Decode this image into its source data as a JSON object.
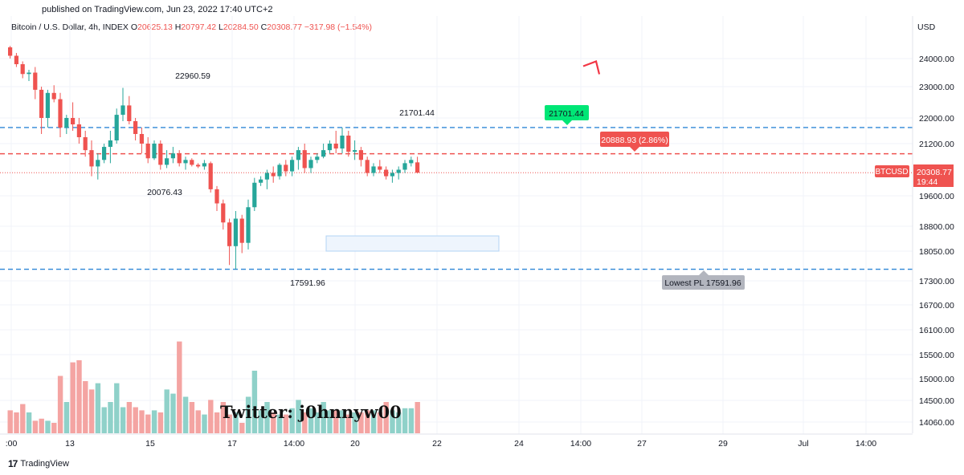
{
  "header": {
    "published": "published on TradingView.com, Jun 23, 2022 17:40 UTC+2"
  },
  "legend": {
    "symbol": "Bitcoin / U.S. Dollar, 4h, INDEX",
    "o_label": "O",
    "o": "20625.13",
    "h_label": "H",
    "h": "20797.42",
    "l_label": "L",
    "l": "20284.50",
    "c_label": "C",
    "c": "20308.77",
    "change": "−317.98 (−1.54%)"
  },
  "footer": {
    "brand": "TradingView",
    "logo": "tv-logo-icon"
  },
  "colors": {
    "up": "#26a69a",
    "down": "#ef5350",
    "vol_up": "#8fd1c9",
    "vol_down": "#f4a4a2",
    "blue_dash": "#2f86d6",
    "red_dash": "#ef5350",
    "green_label": "#00e676",
    "price_label": "#ef5350",
    "grey_label": "#b2b5be"
  },
  "chart_data": {
    "type": "candlestick",
    "currency_label": "USD",
    "y_ticks": [
      24000,
      23000,
      22000,
      21200,
      19600,
      18800,
      18050,
      17300,
      16700,
      16100,
      15500,
      15000,
      14500,
      14060
    ],
    "y_tick_labels": [
      "24000.00",
      "23000.00",
      "22000.00",
      "21200.00",
      "19600.00",
      "18800.00",
      "18050.00",
      "17300.00",
      "16700.00",
      "16100.00",
      "15500.00",
      "15000.00",
      "14500.00",
      "14060.00"
    ],
    "x_ticks": [
      ":00",
      "13",
      "15",
      "17",
      "14:00",
      "20",
      "22",
      "24",
      "14:00",
      "27",
      "29",
      "Jul",
      "14:00"
    ],
    "candles": [
      [
        24400,
        24450,
        24000,
        24100
      ],
      [
        24100,
        24200,
        23700,
        23800
      ],
      [
        23800,
        23900,
        23300,
        23450
      ],
      [
        23450,
        23600,
        23200,
        23500
      ],
      [
        23500,
        23700,
        22600,
        22900
      ],
      [
        22900,
        23000,
        21500,
        22000
      ],
      [
        22000,
        22900,
        21700,
        22800
      ],
      [
        22800,
        23050,
        22500,
        22600
      ],
      [
        22600,
        22800,
        21400,
        21700
      ],
      [
        21700,
        22100,
        21500,
        22000
      ],
      [
        22000,
        22500,
        21600,
        21800
      ],
      [
        21800,
        22000,
        21200,
        21400
      ],
      [
        21400,
        21600,
        20800,
        21000
      ],
      [
        21000,
        21300,
        20200,
        20500
      ],
      [
        20500,
        20900,
        20100,
        20700
      ],
      [
        20700,
        21200,
        20600,
        21100
      ],
      [
        21100,
        21600,
        20600,
        21300
      ],
      [
        21300,
        22300,
        21200,
        22100
      ],
      [
        22100,
        22960,
        21900,
        22400
      ],
      [
        22400,
        22700,
        21800,
        21900
      ],
      [
        21900,
        22000,
        21300,
        21500
      ],
      [
        21500,
        21700,
        20900,
        21200
      ],
      [
        21200,
        21400,
        20600,
        20750
      ],
      [
        20750,
        21300,
        20700,
        21200
      ],
      [
        21200,
        21300,
        20400,
        20550
      ],
      [
        20550,
        21000,
        20450,
        20750
      ],
      [
        20750,
        21100,
        20600,
        20900
      ],
      [
        20900,
        21000,
        20500,
        20600
      ],
      [
        20600,
        20800,
        20400,
        20700
      ],
      [
        20700,
        20750,
        20500,
        20550
      ],
      [
        20550,
        20600,
        20450,
        20500
      ],
      [
        20500,
        20700,
        20400,
        20600
      ],
      [
        20600,
        20650,
        19700,
        19800
      ],
      [
        19800,
        19900,
        19200,
        19400
      ],
      [
        19400,
        19500,
        18700,
        18900
      ],
      [
        18900,
        19000,
        17700,
        18200
      ],
      [
        18200,
        19200,
        17591.96,
        19000
      ],
      [
        19000,
        19100,
        18000,
        18300
      ],
      [
        18300,
        19500,
        18100,
        19300
      ],
      [
        19300,
        20150,
        19200,
        20000
      ],
      [
        20000,
        20200,
        19900,
        20100
      ],
      [
        20100,
        20400,
        19800,
        20300
      ],
      [
        20300,
        20500,
        20000,
        20200
      ],
      [
        20200,
        20600,
        20100,
        20550
      ],
      [
        20550,
        20700,
        20200,
        20350
      ],
      [
        20350,
        20800,
        20200,
        20700
      ],
      [
        20700,
        21100,
        20400,
        21000
      ],
      [
        21000,
        21200,
        20300,
        20450
      ],
      [
        20450,
        20800,
        20300,
        20700
      ],
      [
        20700,
        20900,
        20600,
        20800
      ],
      [
        20800,
        21200,
        20750,
        21000
      ],
      [
        21000,
        21300,
        20900,
        21200
      ],
      [
        21200,
        21600,
        20900,
        21050
      ],
      [
        21050,
        21701.44,
        20900,
        21450
      ],
      [
        21450,
        21600,
        20800,
        20950
      ],
      [
        20950,
        21300,
        20700,
        21000
      ],
      [
        21000,
        21100,
        20500,
        20700
      ],
      [
        20700,
        20800,
        20200,
        20300
      ],
      [
        20300,
        20600,
        20200,
        20500
      ],
      [
        20500,
        20700,
        20300,
        20400
      ],
      [
        20400,
        20500,
        20100,
        20200
      ],
      [
        20200,
        20400,
        20000,
        20300
      ],
      [
        20300,
        20500,
        20100,
        20400
      ],
      [
        20400,
        20700,
        20300,
        20600
      ],
      [
        20600,
        20800,
        20500,
        20700
      ],
      [
        20625.13,
        20797.42,
        20284.5,
        20308.77
      ]
    ],
    "volume": [
      0.22,
      0.2,
      0.28,
      0.2,
      0.12,
      0.14,
      0.12,
      0.1,
      0.55,
      0.3,
      0.68,
      0.7,
      0.5,
      0.42,
      0.48,
      0.25,
      0.3,
      0.48,
      0.25,
      0.3,
      0.25,
      0.22,
      0.18,
      0.22,
      0.2,
      0.42,
      0.38,
      0.88,
      0.35,
      0.3,
      0.22,
      0.18,
      0.32,
      0.2,
      0.3,
      0.18,
      0.2,
      0.1,
      0.35,
      0.6,
      0.22,
      0.3,
      0.2,
      0.18,
      0.18,
      0.24,
      0.32,
      0.2,
      0.24,
      0.2,
      0.3,
      0.22,
      0.22,
      0.22,
      0.18,
      0.2,
      0.2,
      0.22,
      0.22,
      0.2,
      0.3,
      0.22,
      0.2,
      0.24,
      0.24,
      0.3
    ],
    "highs_lows": [
      {
        "label": "22960.59"
      },
      {
        "label": "20076.43"
      },
      {
        "label": "17591.96"
      },
      {
        "label": "21701.44"
      }
    ],
    "levels": [
      {
        "name": "upper-resistance",
        "price": 21701.44,
        "style": "blue-dashed"
      },
      {
        "name": "middle-level",
        "price": 20888.93,
        "style": "red-dashed"
      },
      {
        "name": "lowest-support",
        "price": 17591.96,
        "style": "blue-dashed"
      }
    ],
    "labels": {
      "green": "21701.44",
      "red": "20888.93 (2.86%)",
      "lowest": "Lowest PL  17591.96",
      "symbol_tag": "BTCUSD",
      "price_tag": "20308.77",
      "countdown": "19:44"
    },
    "projection": [
      {
        "price": 20800
      },
      {
        "price": 18050
      },
      {
        "price": 23900
      }
    ],
    "watermark": "Twitter: j0hnnyw00"
  }
}
